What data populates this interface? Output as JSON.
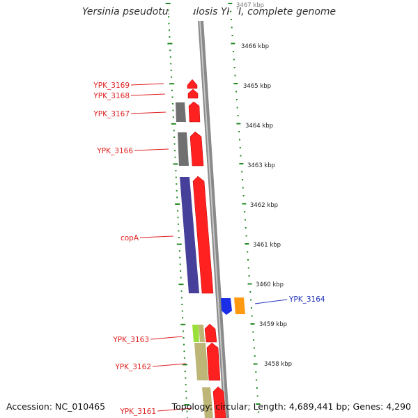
{
  "title": "Yersinia pseudotuberculosis YPIII, complete genome",
  "footer": {
    "accession": "Accession: NC_010465",
    "topology": "Topology: circular; Length: 4,689,441 bp; Genes: 4,290"
  },
  "scale_labels": [
    "3467 kbp",
    "3466 kbp",
    "3465 kbp",
    "3464 kbp",
    "3463 kbp",
    "3462 kbp",
    "3461 kbp",
    "3460 kbp",
    "3459 kbp",
    "3458 kbp"
  ],
  "gene_labels": [
    "YPK_3169",
    "YPK_3168",
    "YPK_3167",
    "YPK_3166",
    "copA",
    "YPK_3164",
    "YPK_3163",
    "YPK_3162",
    "YPK_3161"
  ],
  "colors": {
    "forward_cds": "#ff2020",
    "gray_feature": "#707070",
    "copA_feature": "#46409a",
    "blue_gene": "#1a2ee8",
    "orange_gene": "#ff9911",
    "green_feature": "#9adf3a",
    "khaki_feature": "#bdb676",
    "tick_green": "#228822",
    "backbone": "#8a8a8a",
    "label_red": "#e02020",
    "label_blue": "#2233bb"
  }
}
